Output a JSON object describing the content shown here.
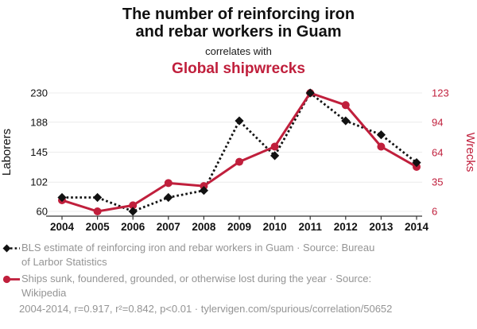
{
  "header": {
    "title_lines": [
      "The number of reinforcing iron",
      "and rebar workers in Guam"
    ],
    "subtitle": "correlates with",
    "secondary_title": "Global shipwrecks"
  },
  "colors": {
    "accent_red": "#c01f3c",
    "series_black": "#121212",
    "gridline": "#ececec",
    "axis_line": "#333333",
    "muted_text": "#949494",
    "text": "#111111"
  },
  "chart_data": {
    "type": "line",
    "title": "The number of reinforcing iron and rebar workers in Guam correlates with Global shipwrecks",
    "x": [
      2004,
      2005,
      2006,
      2007,
      2008,
      2009,
      2010,
      2011,
      2012,
      2013,
      2014
    ],
    "series": [
      {
        "name": "Laborers",
        "axis": "left",
        "color": "#121212",
        "line_style": "dotted",
        "marker": "diamond",
        "values": [
          80,
          80,
          60,
          80,
          90,
          190,
          140,
          230,
          190,
          170,
          130
        ]
      },
      {
        "name": "Wrecks",
        "axis": "right",
        "color": "#c01f3c",
        "line_style": "solid",
        "marker": "circle",
        "values": [
          17,
          6,
          12,
          34,
          31,
          55,
          70,
          123,
          111,
          70,
          50
        ]
      }
    ],
    "left_axis": {
      "label": "Laborers",
      "ticks": [
        60,
        102,
        145,
        188,
        230
      ],
      "range": [
        60,
        230
      ]
    },
    "right_axis": {
      "label": "Wrecks",
      "ticks": [
        6,
        35,
        64,
        94,
        123
      ],
      "range": [
        6,
        123
      ]
    },
    "grid": true,
    "legend_position": "bottom"
  },
  "legend": [
    {
      "marker": "black-diamond-dotted",
      "lines": [
        "BLS estimate of reinforcing iron and rebar workers in Guam · Source: Bureau",
        "of Larbor Statistics"
      ]
    },
    {
      "marker": "red-circle-solid",
      "lines": [
        "Ships sunk, foundered, grounded, or otherwise lost during the year · Source:",
        "Wikipedia"
      ]
    }
  ],
  "footer": {
    "text": "2004-2014, r=0.917, r²=0.842, p<0.01 · tylervigen.com/spurious/correlation/50652"
  }
}
